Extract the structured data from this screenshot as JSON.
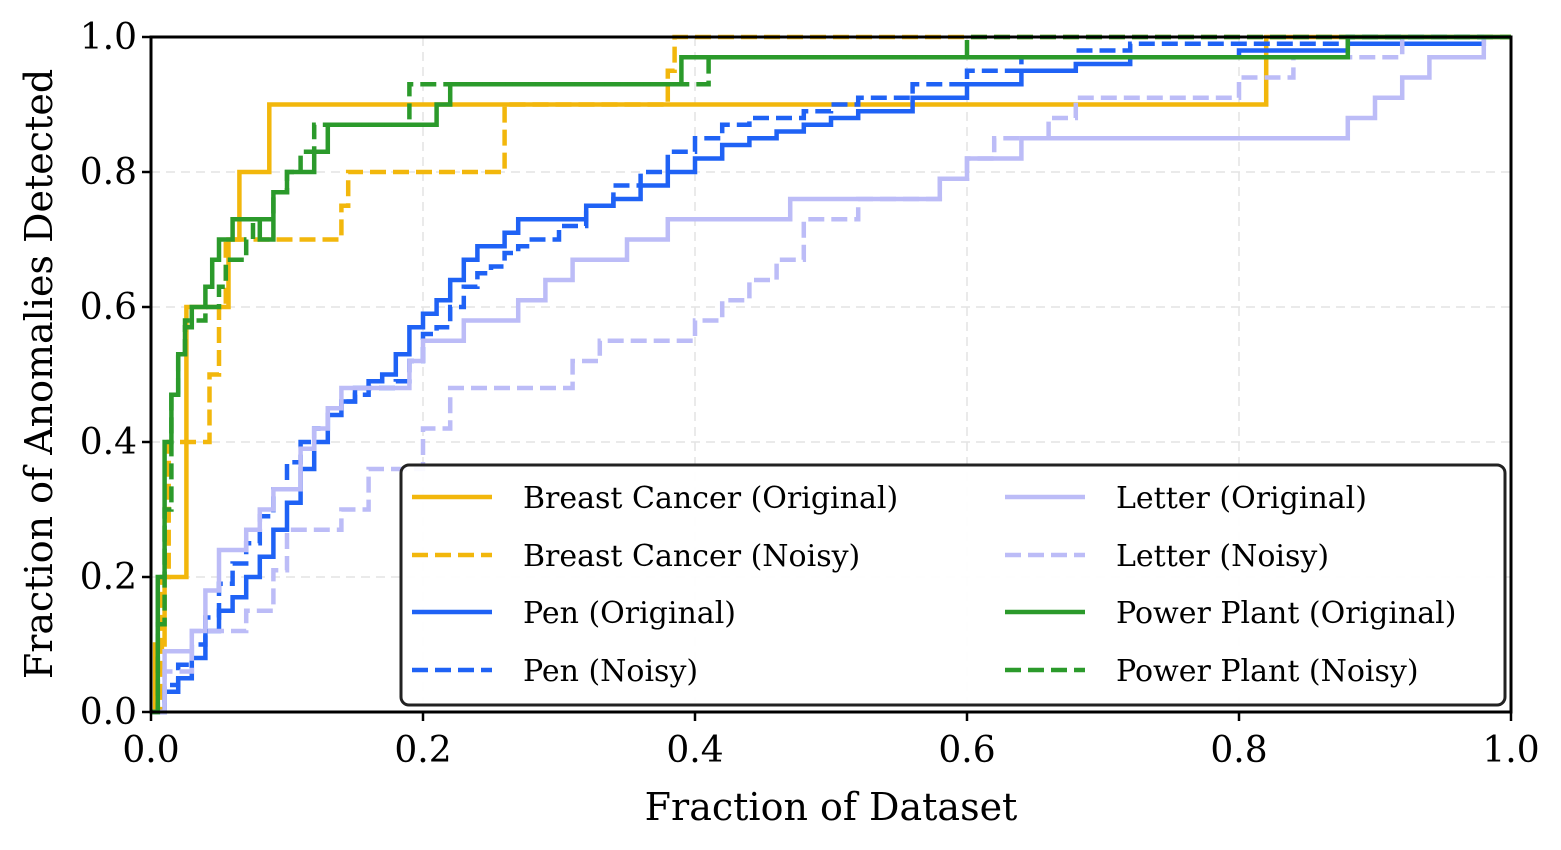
{
  "chart_data": {
    "type": "line",
    "title": "",
    "xlabel": "Fraction of Dataset",
    "ylabel": "Fraction of Anomalies Detected",
    "xlim": [
      0,
      1
    ],
    "ylim": [
      0,
      1
    ],
    "grid": true,
    "x_ticks": [
      "0.0",
      "0.2",
      "0.4",
      "0.6",
      "0.8",
      "1.0"
    ],
    "y_ticks": [
      "0.0",
      "0.2",
      "0.4",
      "0.6",
      "0.8",
      "1.0"
    ],
    "legend_position": "lower-right",
    "series": [
      {
        "name": "Breast Cancer (Original)",
        "color": "#f2b70c",
        "style": "solid",
        "x": [
          0,
          0.003,
          0.01,
          0.02,
          0.026,
          0.026,
          0.04,
          0.047,
          0.055,
          0.057,
          0.063,
          0.065,
          0.085,
          0.087,
          0.82,
          0.82,
          1.0
        ],
        "y": [
          0,
          0.1,
          0.2,
          0.2,
          0.4,
          0.6,
          0.6,
          0.6,
          0.6,
          0.7,
          0.7,
          0.8,
          0.8,
          0.9,
          0.9,
          1.0,
          1.0
        ]
      },
      {
        "name": "Breast Cancer (Noisy)",
        "color": "#f2b70c",
        "style": "dashed",
        "x": [
          0,
          0.008,
          0.013,
          0.043,
          0.043,
          0.045,
          0.05,
          0.055,
          0.055,
          0.06,
          0.065,
          0.07,
          0.1,
          0.14,
          0.14,
          0.145,
          0.26,
          0.26,
          0.38,
          0.38,
          0.385,
          1.0
        ],
        "y": [
          0,
          0.2,
          0.4,
          0.4,
          0.5,
          0.5,
          0.6,
          0.6,
          0.7,
          0.7,
          0.7,
          0.7,
          0.7,
          0.7,
          0.75,
          0.8,
          0.8,
          0.9,
          0.9,
          0.95,
          1.0,
          1.0
        ]
      },
      {
        "name": "Pen (Original)",
        "color": "#1f62f5",
        "style": "solid",
        "x": [
          0,
          0.01,
          0.02,
          0.03,
          0.04,
          0.05,
          0.06,
          0.07,
          0.08,
          0.09,
          0.1,
          0.11,
          0.12,
          0.13,
          0.14,
          0.15,
          0.16,
          0.17,
          0.18,
          0.19,
          0.2,
          0.21,
          0.22,
          0.23,
          0.24,
          0.25,
          0.26,
          0.27,
          0.28,
          0.3,
          0.32,
          0.34,
          0.36,
          0.38,
          0.4,
          0.42,
          0.44,
          0.46,
          0.48,
          0.5,
          0.52,
          0.56,
          0.6,
          0.64,
          0.68,
          0.72,
          0.76,
          0.8,
          0.84,
          0.88,
          0.92,
          0.98
        ],
        "y": [
          0,
          0.03,
          0.05,
          0.08,
          0.12,
          0.15,
          0.17,
          0.2,
          0.23,
          0.27,
          0.31,
          0.36,
          0.4,
          0.44,
          0.46,
          0.48,
          0.49,
          0.5,
          0.53,
          0.57,
          0.59,
          0.61,
          0.64,
          0.67,
          0.69,
          0.69,
          0.71,
          0.73,
          0.73,
          0.73,
          0.75,
          0.76,
          0.78,
          0.8,
          0.82,
          0.84,
          0.85,
          0.86,
          0.87,
          0.88,
          0.89,
          0.91,
          0.93,
          0.95,
          0.96,
          0.97,
          0.97,
          0.98,
          0.98,
          0.99,
          0.99,
          1.0
        ]
      },
      {
        "name": "Pen (Noisy)",
        "color": "#1f62f5",
        "style": "dashed",
        "x": [
          0,
          0.01,
          0.02,
          0.03,
          0.04,
          0.05,
          0.06,
          0.07,
          0.08,
          0.09,
          0.1,
          0.11,
          0.12,
          0.13,
          0.14,
          0.15,
          0.16,
          0.17,
          0.18,
          0.19,
          0.2,
          0.21,
          0.22,
          0.23,
          0.24,
          0.25,
          0.26,
          0.27,
          0.28,
          0.3,
          0.32,
          0.34,
          0.36,
          0.38,
          0.4,
          0.42,
          0.44,
          0.46,
          0.48,
          0.5,
          0.52,
          0.56,
          0.6,
          0.64,
          0.68,
          0.72,
          0.76,
          0.8,
          0.84,
          0.88,
          0.92,
          0.98
        ],
        "y": [
          0,
          0.04,
          0.07,
          0.1,
          0.14,
          0.19,
          0.22,
          0.25,
          0.29,
          0.33,
          0.37,
          0.4,
          0.42,
          0.45,
          0.46,
          0.47,
          0.48,
          0.48,
          0.49,
          0.52,
          0.56,
          0.57,
          0.6,
          0.63,
          0.65,
          0.66,
          0.68,
          0.69,
          0.7,
          0.72,
          0.75,
          0.78,
          0.8,
          0.83,
          0.85,
          0.87,
          0.88,
          0.88,
          0.89,
          0.9,
          0.91,
          0.93,
          0.95,
          0.97,
          0.98,
          0.99,
          0.99,
          0.99,
          0.99,
          1.0,
          1.0,
          1.0
        ]
      },
      {
        "name": "Letter (Original)",
        "color": "#bcbcf7",
        "style": "solid",
        "x": [
          0,
          0.01,
          0.02,
          0.03,
          0.04,
          0.05,
          0.06,
          0.07,
          0.08,
          0.09,
          0.1,
          0.11,
          0.12,
          0.13,
          0.14,
          0.15,
          0.16,
          0.17,
          0.18,
          0.19,
          0.2,
          0.21,
          0.22,
          0.23,
          0.25,
          0.27,
          0.29,
          0.31,
          0.33,
          0.35,
          0.38,
          0.42,
          0.46,
          0.47,
          0.52,
          0.56,
          0.58,
          0.6,
          0.62,
          0.64,
          0.66,
          0.7,
          0.75,
          0.8,
          0.85,
          0.88,
          0.9,
          0.92,
          0.94,
          0.96,
          0.98
        ],
        "y": [
          0,
          0.09,
          0.09,
          0.12,
          0.18,
          0.24,
          0.24,
          0.27,
          0.3,
          0.33,
          0.33,
          0.39,
          0.42,
          0.45,
          0.48,
          0.48,
          0.48,
          0.48,
          0.48,
          0.52,
          0.55,
          0.55,
          0.55,
          0.58,
          0.58,
          0.61,
          0.64,
          0.67,
          0.67,
          0.7,
          0.73,
          0.73,
          0.73,
          0.76,
          0.76,
          0.76,
          0.79,
          0.82,
          0.82,
          0.85,
          0.85,
          0.85,
          0.85,
          0.85,
          0.85,
          0.88,
          0.91,
          0.94,
          0.97,
          0.97,
          1.0
        ]
      },
      {
        "name": "Letter (Noisy)",
        "color": "#bcbcf7",
        "style": "dashed",
        "x": [
          0,
          0.01,
          0.03,
          0.05,
          0.07,
          0.09,
          0.1,
          0.12,
          0.14,
          0.16,
          0.18,
          0.2,
          0.22,
          0.24,
          0.26,
          0.28,
          0.29,
          0.31,
          0.33,
          0.35,
          0.38,
          0.4,
          0.42,
          0.44,
          0.46,
          0.48,
          0.5,
          0.52,
          0.56,
          0.58,
          0.6,
          0.62,
          0.64,
          0.66,
          0.68,
          0.72,
          0.76,
          0.8,
          0.84,
          0.88,
          0.92,
          0.96
        ],
        "y": [
          0,
          0.06,
          0.12,
          0.12,
          0.15,
          0.21,
          0.27,
          0.27,
          0.3,
          0.36,
          0.36,
          0.42,
          0.48,
          0.48,
          0.48,
          0.48,
          0.48,
          0.52,
          0.55,
          0.55,
          0.55,
          0.58,
          0.61,
          0.64,
          0.67,
          0.73,
          0.73,
          0.76,
          0.76,
          0.79,
          0.82,
          0.85,
          0.85,
          0.88,
          0.91,
          0.91,
          0.91,
          0.94,
          0.97,
          0.97,
          1.0,
          1.0
        ]
      },
      {
        "name": "Power Plant (Original)",
        "color": "#2b9a2b",
        "style": "solid",
        "x": [
          0,
          0.005,
          0.01,
          0.015,
          0.02,
          0.025,
          0.03,
          0.035,
          0.04,
          0.045,
          0.05,
          0.055,
          0.06,
          0.07,
          0.075,
          0.08,
          0.09,
          0.1,
          0.11,
          0.12,
          0.13,
          0.14,
          0.17,
          0.2,
          0.21,
          0.22,
          0.23,
          0.25,
          0.3,
          0.35,
          0.38,
          0.39,
          0.45,
          0.55,
          0.65,
          0.75,
          0.85,
          0.87,
          0.88,
          1.0
        ],
        "y": [
          0,
          0.2,
          0.4,
          0.47,
          0.53,
          0.57,
          0.6,
          0.6,
          0.63,
          0.67,
          0.7,
          0.7,
          0.73,
          0.73,
          0.73,
          0.7,
          0.77,
          0.8,
          0.8,
          0.83,
          0.87,
          0.87,
          0.87,
          0.87,
          0.9,
          0.93,
          0.93,
          0.93,
          0.93,
          0.93,
          0.93,
          0.97,
          0.97,
          0.97,
          0.97,
          0.97,
          0.97,
          0.97,
          1.0,
          1.0
        ]
      },
      {
        "name": "Power Plant (Noisy)",
        "color": "#2b9a2b",
        "style": "dashed",
        "x": [
          0,
          0.005,
          0.01,
          0.015,
          0.02,
          0.025,
          0.03,
          0.04,
          0.05,
          0.055,
          0.06,
          0.07,
          0.075,
          0.08,
          0.09,
          0.1,
          0.11,
          0.12,
          0.13,
          0.14,
          0.17,
          0.19,
          0.2,
          0.22,
          0.25,
          0.3,
          0.35,
          0.4,
          0.41,
          0.5,
          0.6,
          0.7,
          0.8,
          0.9,
          1.0
        ],
        "y": [
          0,
          0.13,
          0.3,
          0.47,
          0.53,
          0.58,
          0.58,
          0.6,
          0.63,
          0.67,
          0.67,
          0.7,
          0.73,
          0.73,
          0.77,
          0.8,
          0.83,
          0.87,
          0.87,
          0.87,
          0.87,
          0.93,
          0.93,
          0.93,
          0.93,
          0.93,
          0.93,
          0.93,
          0.97,
          0.97,
          1.0,
          1.0,
          1.0,
          1.0,
          1.0
        ]
      }
    ],
    "legend": [
      "Breast Cancer (Original)",
      "Breast Cancer (Noisy)",
      "Pen (Original)",
      "Pen (Noisy)",
      "Letter (Original)",
      "Letter (Noisy)",
      "Power Plant (Original)",
      "Power Plant (Noisy)"
    ]
  }
}
